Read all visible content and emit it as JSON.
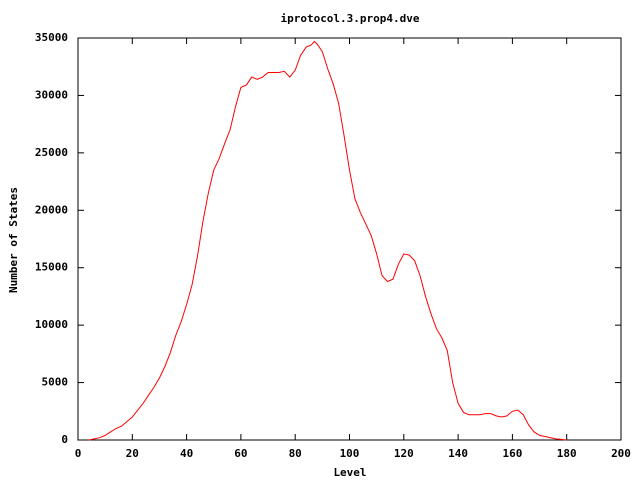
{
  "chart_data": {
    "type": "line",
    "title": "iprotocol.3.prop4.dve",
    "xlabel": "Level",
    "ylabel": "Number of States",
    "x": [
      4,
      6,
      8,
      10,
      12,
      14,
      16,
      18,
      20,
      22,
      24,
      26,
      28,
      30,
      32,
      34,
      36,
      38,
      40,
      42,
      44,
      46,
      48,
      50,
      52,
      54,
      56,
      58,
      60,
      62,
      64,
      66,
      68,
      70,
      72,
      74,
      76,
      78,
      80,
      82,
      84,
      86,
      87,
      88,
      90,
      92,
      94,
      96,
      98,
      100,
      102,
      104,
      106,
      108,
      110,
      112,
      114,
      116,
      118,
      120,
      122,
      124,
      126,
      128,
      130,
      132,
      134,
      136,
      138,
      140,
      142,
      144,
      146,
      148,
      150,
      152,
      154,
      156,
      158,
      160,
      162,
      164,
      166,
      168,
      170,
      172,
      174,
      176,
      178,
      180
    ],
    "values": [
      0,
      100,
      200,
      400,
      700,
      1000,
      1200,
      1600,
      2000,
      2600,
      3200,
      3900,
      4600,
      5400,
      6400,
      7600,
      9100,
      10300,
      11800,
      13500,
      16000,
      19000,
      21500,
      23500,
      24500,
      25800,
      27000,
      29000,
      30700,
      30900,
      31600,
      31400,
      31600,
      32000,
      32000,
      32000,
      32100,
      31600,
      32200,
      33500,
      34200,
      34400,
      34700,
      34500,
      33800,
      32300,
      31000,
      29300,
      26500,
      23500,
      21000,
      19800,
      18800,
      17800,
      16200,
      14300,
      13800,
      14000,
      15300,
      16200,
      16100,
      15600,
      14300,
      12500,
      11000,
      9700,
      8900,
      7800,
      5000,
      3200,
      2400,
      2200,
      2200,
      2200,
      2300,
      2300,
      2100,
      2000,
      2100,
      2500,
      2600,
      2200,
      1300,
      700,
      400,
      300,
      200,
      100,
      50,
      0
    ],
    "color": "#ff0000",
    "xlim": [
      0,
      200
    ],
    "xticks": [
      0,
      20,
      40,
      60,
      80,
      100,
      120,
      140,
      160,
      180,
      200
    ],
    "ylim": [
      0,
      35000
    ],
    "yticks": [
      0,
      5000,
      10000,
      15000,
      20000,
      25000,
      30000,
      35000
    ]
  }
}
